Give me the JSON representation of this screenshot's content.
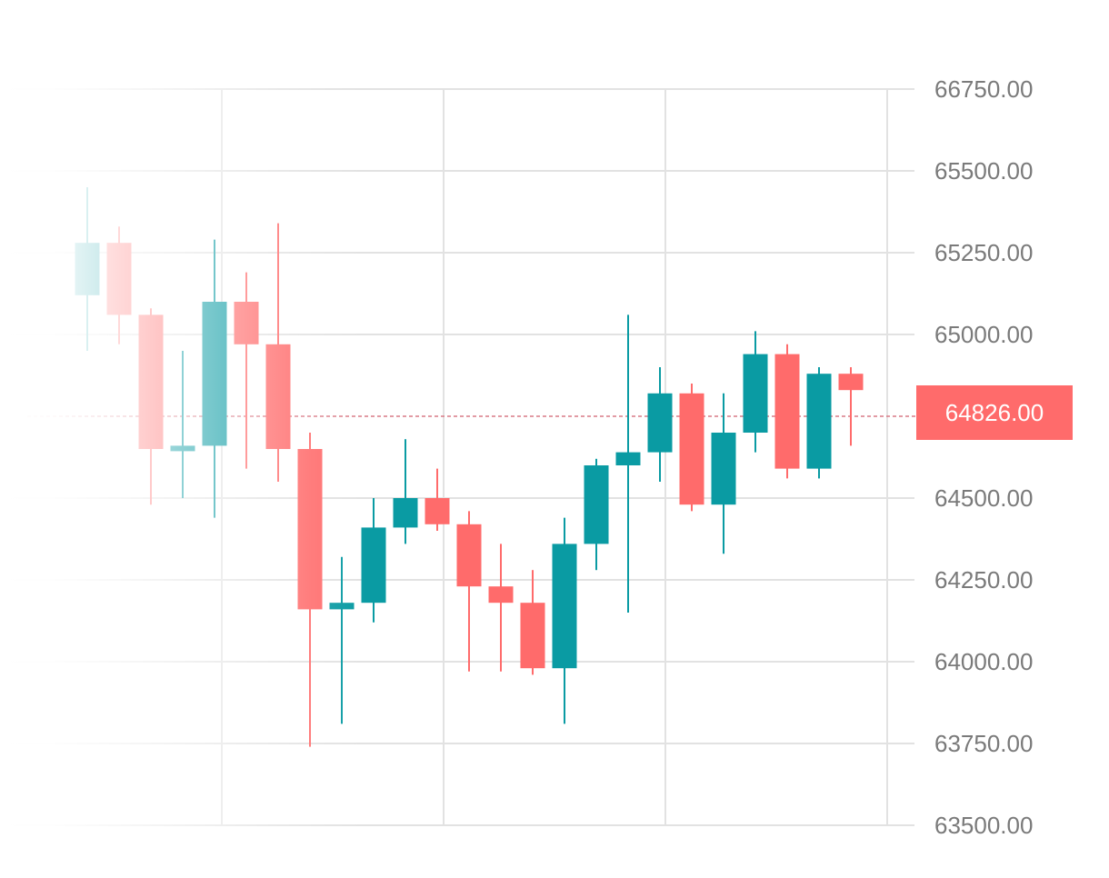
{
  "chart_data": {
    "type": "candlestick",
    "ylim": [
      63500,
      66750
    ],
    "y_ticks": [
      "66750.00",
      "65500.00",
      "65250.00",
      "65000.00",
      "64500.00",
      "64250.00",
      "64000.00",
      "63750.00",
      "63500.00"
    ],
    "y_tick_values": [
      66750,
      65500,
      65250,
      65000,
      64500,
      64250,
      64000,
      63750,
      63500
    ],
    "grid": true,
    "current_price": 64826,
    "current_price_label": "64826.00",
    "colors": {
      "up": "#0a9ba3",
      "down": "#ff6b6b",
      "grid": "#e2e2e2",
      "tick_text": "#7a7a7a",
      "price_tag_bg": "#ff6b6b",
      "price_line": "#d97a86"
    },
    "candles": [
      {
        "open": 65120,
        "high": 65450,
        "low": 64950,
        "close": 65280
      },
      {
        "open": 65280,
        "high": 65330,
        "low": 64970,
        "close": 65060
      },
      {
        "open": 65060,
        "high": 65080,
        "low": 64480,
        "close": 64650
      },
      {
        "open": 64650,
        "high": 64950,
        "low": 64500,
        "close": 64660
      },
      {
        "open": 64660,
        "high": 65290,
        "low": 64440,
        "close": 65100
      },
      {
        "open": 65100,
        "high": 65190,
        "low": 64590,
        "close": 64970
      },
      {
        "open": 64970,
        "high": 65340,
        "low": 64550,
        "close": 64650
      },
      {
        "open": 64650,
        "high": 64700,
        "low": 63740,
        "close": 64160
      },
      {
        "open": 64160,
        "high": 64320,
        "low": 63810,
        "close": 64180
      },
      {
        "open": 64180,
        "high": 64500,
        "low": 64120,
        "close": 64410
      },
      {
        "open": 64410,
        "high": 64680,
        "low": 64360,
        "close": 64500
      },
      {
        "open": 64500,
        "high": 64590,
        "low": 64400,
        "close": 64420
      },
      {
        "open": 64420,
        "high": 64460,
        "low": 63970,
        "close": 64230
      },
      {
        "open": 64230,
        "high": 64360,
        "low": 63970,
        "close": 64180
      },
      {
        "open": 64180,
        "high": 64280,
        "low": 63960,
        "close": 63980
      },
      {
        "open": 63980,
        "high": 64440,
        "low": 63810,
        "close": 64360
      },
      {
        "open": 64360,
        "high": 64620,
        "low": 64280,
        "close": 64600
      },
      {
        "open": 64600,
        "high": 65060,
        "low": 64150,
        "close": 64640
      },
      {
        "open": 64640,
        "high": 64900,
        "low": 64550,
        "close": 64820
      },
      {
        "open": 64820,
        "high": 64850,
        "low": 64460,
        "close": 64480
      },
      {
        "open": 64480,
        "high": 64820,
        "low": 64330,
        "close": 64700
      },
      {
        "open": 64700,
        "high": 65010,
        "low": 64640,
        "close": 64940
      },
      {
        "open": 64940,
        "high": 64970,
        "low": 64560,
        "close": 64590
      },
      {
        "open": 64590,
        "high": 64900,
        "low": 64560,
        "close": 64880
      },
      {
        "open": 64880,
        "high": 64900,
        "low": 64660,
        "close": 64830
      }
    ]
  }
}
